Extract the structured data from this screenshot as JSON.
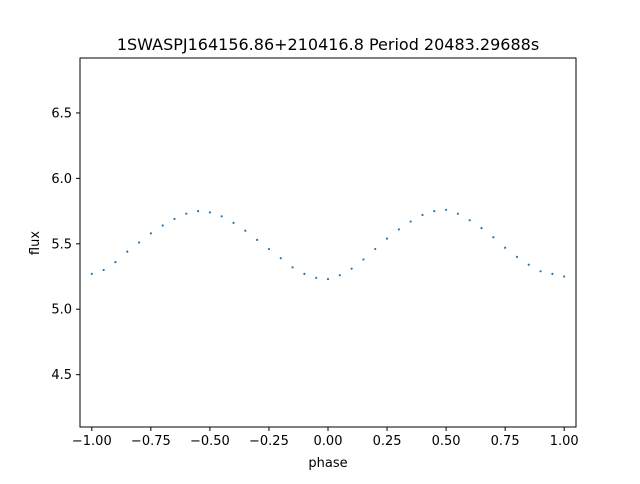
{
  "chart_data": {
    "type": "scatter",
    "title": "1SWASPJ164156.86+210416.8 Period 20483.29688s",
    "xlabel": "phase",
    "ylabel": "flux",
    "xlim": [
      -1.05,
      1.05
    ],
    "ylim": [
      4.1,
      6.92
    ],
    "xticks": [
      -1.0,
      -0.75,
      -0.5,
      -0.25,
      0.0,
      0.25,
      0.5,
      0.75,
      1.0
    ],
    "xtick_labels": [
      "−1.00",
      "−0.75",
      "−0.50",
      "−0.25",
      "0.00",
      "0.25",
      "0.50",
      "0.75",
      "1.00"
    ],
    "yticks": [
      4.5,
      5.0,
      5.5,
      6.0,
      6.5
    ],
    "ytick_labels": [
      "4.5",
      "5.0",
      "5.5",
      "6.0",
      "6.5"
    ],
    "grid": false,
    "legend": "none",
    "marker_color": "#1f77b4",
    "series": [
      {
        "x": [
          -1.0,
          -0.95,
          -0.9,
          -0.85,
          -0.8,
          -0.75,
          -0.7,
          -0.65,
          -0.6,
          -0.55,
          -0.5,
          -0.45,
          -0.4,
          -0.35,
          -0.3,
          -0.25,
          -0.2,
          -0.15,
          -0.1,
          -0.05,
          0.0,
          0.05,
          0.1,
          0.15,
          0.2,
          0.25,
          0.3,
          0.35,
          0.4,
          0.45,
          0.5,
          0.55,
          0.6,
          0.65,
          0.7,
          0.75,
          0.8,
          0.85,
          0.9,
          0.95,
          1.0
        ],
        "y": [
          5.27,
          5.3,
          5.36,
          5.44,
          5.51,
          5.58,
          5.64,
          5.69,
          5.73,
          5.75,
          5.74,
          5.71,
          5.66,
          5.6,
          5.53,
          5.46,
          5.39,
          5.32,
          5.27,
          5.24,
          5.23,
          5.26,
          5.31,
          5.38,
          5.46,
          5.54,
          5.61,
          5.67,
          5.72,
          5.75,
          5.76,
          5.73,
          5.68,
          5.62,
          5.55,
          5.47,
          5.4,
          5.34,
          5.29,
          5.27,
          5.25
        ]
      }
    ]
  }
}
